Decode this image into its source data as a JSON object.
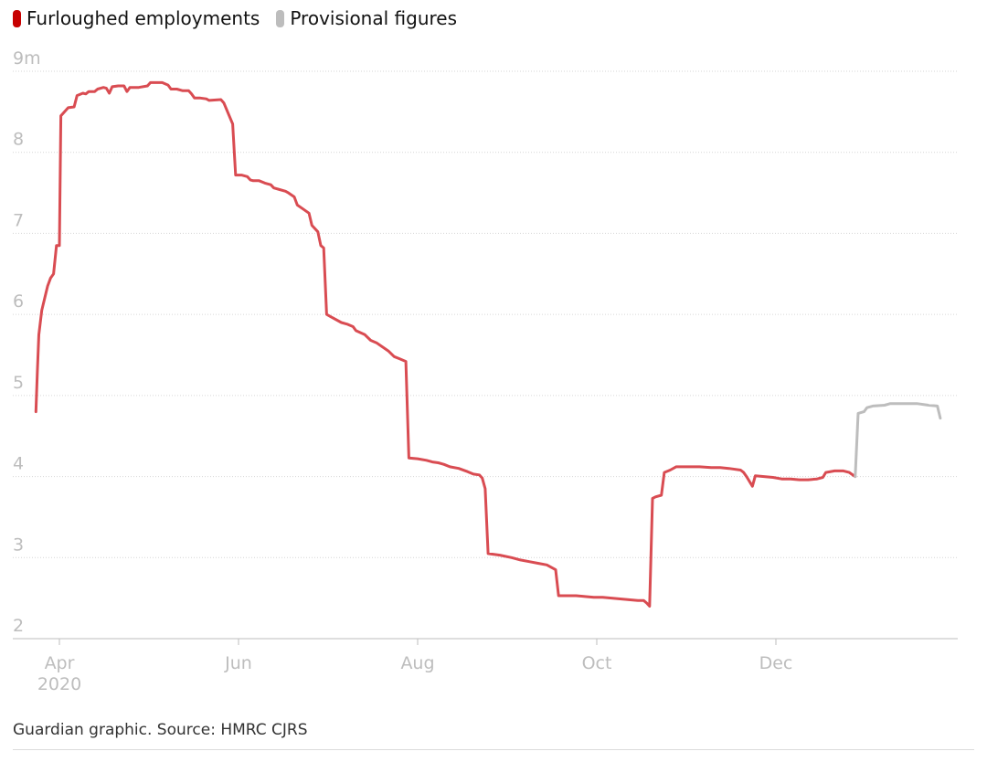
{
  "legend": [
    {
      "label": "Furloughed employments",
      "color": "#c70000"
    },
    {
      "label": "Provisional figures",
      "color": "#bdbdbd"
    }
  ],
  "source": "Guardian graphic. Source: HMRC CJRS",
  "chart_data": {
    "type": "line",
    "title": "",
    "xlabel": "",
    "ylabel": "",
    "y_unit_suffix": "m",
    "ylim": [
      2,
      9
    ],
    "yticks": [
      2,
      3,
      4,
      5,
      6,
      7,
      8,
      9
    ],
    "x_domain_days": [
      -5,
      300
    ],
    "x_ticks": [
      {
        "day": 0,
        "label": "Apr",
        "sublabel": "2020"
      },
      {
        "day": 61,
        "label": "Jun",
        "sublabel": ""
      },
      {
        "day": 122,
        "label": "Aug",
        "sublabel": ""
      },
      {
        "day": 183,
        "label": "Oct",
        "sublabel": ""
      },
      {
        "day": 244,
        "label": "Dec",
        "sublabel": ""
      }
    ],
    "series": [
      {
        "name": "Furloughed employments",
        "color": "#d94c52",
        "points": [
          [
            -8,
            4.8
          ],
          [
            -7.5,
            5.3
          ],
          [
            -7,
            5.75
          ],
          [
            -6,
            6.05
          ],
          [
            -5,
            6.2
          ],
          [
            -4,
            6.35
          ],
          [
            -3,
            6.45
          ],
          [
            -2,
            6.5
          ],
          [
            -1,
            6.85
          ],
          [
            0,
            6.85
          ],
          [
            0.5,
            8.45
          ],
          [
            1,
            8.47
          ],
          [
            3,
            8.55
          ],
          [
            5,
            8.56
          ],
          [
            6,
            8.7
          ],
          [
            8,
            8.73
          ],
          [
            9,
            8.72
          ],
          [
            10,
            8.75
          ],
          [
            12,
            8.75
          ],
          [
            13,
            8.78
          ],
          [
            15,
            8.8
          ],
          [
            16,
            8.79
          ],
          [
            17,
            8.73
          ],
          [
            18,
            8.81
          ],
          [
            20,
            8.82
          ],
          [
            22,
            8.82
          ],
          [
            23,
            8.75
          ],
          [
            24,
            8.8
          ],
          [
            25,
            8.8
          ],
          [
            27,
            8.8
          ],
          [
            30,
            8.82
          ],
          [
            31,
            8.86
          ],
          [
            33,
            8.86
          ],
          [
            35,
            8.86
          ],
          [
            37,
            8.83
          ],
          [
            38,
            8.78
          ],
          [
            40,
            8.78
          ],
          [
            42,
            8.76
          ],
          [
            44,
            8.76
          ],
          [
            45,
            8.72
          ],
          [
            46,
            8.67
          ],
          [
            48,
            8.67
          ],
          [
            50,
            8.66
          ],
          [
            51,
            8.64
          ],
          [
            55,
            8.65
          ],
          [
            56,
            8.61
          ],
          [
            59,
            8.35
          ],
          [
            60,
            7.72
          ],
          [
            62,
            7.72
          ],
          [
            64,
            7.7
          ],
          [
            65,
            7.66
          ],
          [
            66,
            7.65
          ],
          [
            68,
            7.65
          ],
          [
            70,
            7.62
          ],
          [
            72,
            7.6
          ],
          [
            73,
            7.56
          ],
          [
            75,
            7.54
          ],
          [
            77,
            7.52
          ],
          [
            78,
            7.5
          ],
          [
            80,
            7.45
          ],
          [
            81,
            7.35
          ],
          [
            83,
            7.3
          ],
          [
            85,
            7.25
          ],
          [
            86,
            7.1
          ],
          [
            88,
            7.02
          ],
          [
            89,
            6.85
          ],
          [
            90,
            6.82
          ],
          [
            91,
            6.0
          ],
          [
            92,
            5.98
          ],
          [
            96,
            5.9
          ],
          [
            98,
            5.88
          ],
          [
            100,
            5.85
          ],
          [
            101,
            5.8
          ],
          [
            104,
            5.75
          ],
          [
            106,
            5.68
          ],
          [
            108,
            5.65
          ],
          [
            110,
            5.6
          ],
          [
            112,
            5.55
          ],
          [
            114,
            5.48
          ],
          [
            116,
            5.45
          ],
          [
            118,
            5.42
          ],
          [
            119,
            4.23
          ],
          [
            122,
            4.22
          ],
          [
            125,
            4.2
          ],
          [
            127,
            4.18
          ],
          [
            129,
            4.17
          ],
          [
            131,
            4.15
          ],
          [
            133,
            4.12
          ],
          [
            136,
            4.1
          ],
          [
            139,
            4.06
          ],
          [
            141,
            4.03
          ],
          [
            143,
            4.02
          ],
          [
            144,
            3.98
          ],
          [
            145,
            3.85
          ],
          [
            146,
            3.05
          ],
          [
            150,
            3.03
          ],
          [
            154,
            3.0
          ],
          [
            157,
            2.97
          ],
          [
            160,
            2.95
          ],
          [
            163,
            2.93
          ],
          [
            166,
            2.91
          ],
          [
            168,
            2.87
          ],
          [
            169,
            2.85
          ],
          [
            170,
            2.53
          ],
          [
            173,
            2.53
          ],
          [
            176,
            2.53
          ],
          [
            179,
            2.52
          ],
          [
            182,
            2.51
          ],
          [
            185,
            2.51
          ],
          [
            188,
            2.5
          ],
          [
            191,
            2.49
          ],
          [
            194,
            2.48
          ],
          [
            197,
            2.47
          ],
          [
            199,
            2.47
          ],
          [
            200,
            2.44
          ],
          [
            201,
            2.4
          ],
          [
            202,
            3.73
          ],
          [
            203,
            3.75
          ],
          [
            205,
            3.77
          ],
          [
            206,
            4.05
          ],
          [
            208,
            4.08
          ],
          [
            210,
            4.12
          ],
          [
            214,
            4.12
          ],
          [
            218,
            4.12
          ],
          [
            222,
            4.11
          ],
          [
            225,
            4.11
          ],
          [
            228,
            4.1
          ],
          [
            232,
            4.08
          ],
          [
            233,
            4.05
          ],
          [
            234,
            4.0
          ],
          [
            236,
            3.88
          ],
          [
            237,
            4.01
          ],
          [
            240,
            4.0
          ],
          [
            243,
            3.99
          ],
          [
            246,
            3.97
          ],
          [
            249,
            3.97
          ],
          [
            252,
            3.96
          ],
          [
            255,
            3.96
          ],
          [
            258,
            3.97
          ],
          [
            260,
            3.99
          ],
          [
            261,
            4.05
          ],
          [
            264,
            4.07
          ],
          [
            267,
            4.07
          ],
          [
            269,
            4.05
          ],
          [
            271,
            4.0
          ]
        ]
      },
      {
        "name": "Provisional figures",
        "color": "#bdbdbd",
        "points": [
          [
            271,
            4.0
          ],
          [
            272,
            4.78
          ],
          [
            274,
            4.8
          ],
          [
            275,
            4.85
          ],
          [
            277,
            4.87
          ],
          [
            281,
            4.88
          ],
          [
            283,
            4.9
          ],
          [
            288,
            4.9
          ],
          [
            292,
            4.9
          ],
          [
            296,
            4.88
          ],
          [
            299,
            4.87
          ],
          [
            300,
            4.72
          ]
        ]
      }
    ]
  }
}
